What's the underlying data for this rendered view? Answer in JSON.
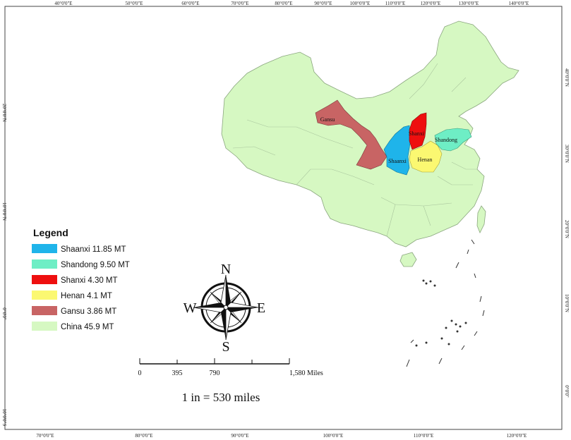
{
  "map": {
    "graticule": {
      "top_labels": [
        "40°0'0\"E",
        "50°0'0\"E",
        "60°0'0\"E",
        "70°0'0\"E",
        "80°0'0\"E",
        "90°0'0\"E",
        "100°0'0\"E",
        "110°0'0\"E",
        "120°0'0\"E",
        "130°0'0\"E",
        "140°0'0\"E"
      ],
      "bottom_labels": [
        "70°0'0\"E",
        "80°0'0\"E",
        "90°0'0\"E",
        "100°0'0\"E",
        "110°0'0\"E",
        "120°0'0\"E"
      ],
      "left_labels": [
        "20°0'0\"N",
        "10°0'0\"N",
        "0°0'0\"",
        "10°0'0\"S"
      ],
      "right_labels": [
        "40°0'0\"N",
        "30°0'0\"N",
        "20°0'0\"N",
        "10°0'0\"N",
        "0°0'0\""
      ]
    },
    "regions": [
      {
        "name": "Shaanxi",
        "color": "#1fb4ea"
      },
      {
        "name": "Shandong",
        "color": "#6eeec5"
      },
      {
        "name": "Shanxi",
        "color": "#ee0f0f"
      },
      {
        "name": "Henan",
        "color": "#fbf871"
      },
      {
        "name": "Gansu",
        "color": "#c86464"
      },
      {
        "name": "China",
        "color": "#d6f8c2"
      }
    ]
  },
  "legend": {
    "title": "Legend",
    "items": [
      {
        "label": "Shaanxi 11.85 MT",
        "color": "#1fb4ea"
      },
      {
        "label": "Shandong 9.50 MT",
        "color": "#6eeec5"
      },
      {
        "label": "Shanxi 4.30 MT",
        "color": "#ee0f0f"
      },
      {
        "label": "Henan 4.1 MT",
        "color": "#fbf871"
      },
      {
        "label": "Gansu 3.86 MT",
        "color": "#c86464"
      },
      {
        "label": "China 45.9 MT",
        "color": "#d6f8c2"
      }
    ]
  },
  "compass": {
    "n": "N",
    "s": "S",
    "e": "E",
    "w": "W"
  },
  "scale_bar": {
    "ticks": [
      "0",
      "395",
      "790",
      "1,580 Miles"
    ],
    "ratio_text": "1 in = 530 miles"
  }
}
